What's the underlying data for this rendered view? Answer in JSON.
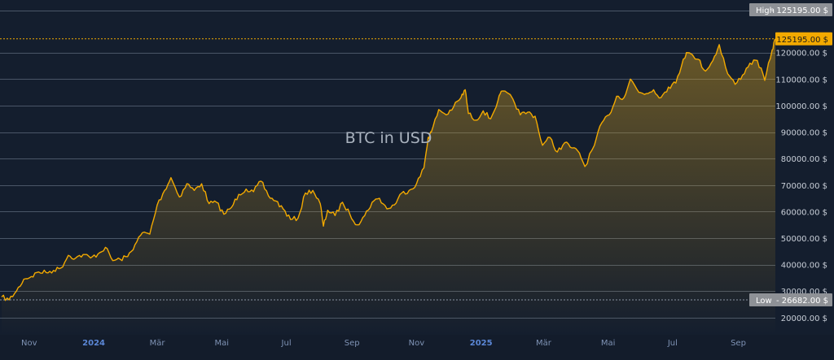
{
  "chart_data": {
    "type": "area",
    "title": "BTC in USD",
    "currency_suffix": "$",
    "ylim": [
      13500,
      138000
    ],
    "yticks": [
      {
        "value": 20000,
        "label": "20000.00 $"
      },
      {
        "value": 30000,
        "label": "30000.00 $"
      },
      {
        "value": 40000,
        "label": "40000.00 $"
      },
      {
        "value": 50000,
        "label": "50000.00 $"
      },
      {
        "value": 60000,
        "label": "60000.00 $"
      },
      {
        "value": 70000,
        "label": "70000.00 $"
      },
      {
        "value": 80000,
        "label": "80000.00 $"
      },
      {
        "value": 90000,
        "label": "90000.00 $"
      },
      {
        "value": 100000,
        "label": "100000.00 $"
      },
      {
        "value": 110000,
        "label": "110000.00 $"
      },
      {
        "value": 120000,
        "label": "120000.00 $"
      }
    ],
    "xticks": [
      {
        "date": "2023-11-01",
        "label": "Nov",
        "year": false
      },
      {
        "date": "2024-01-01",
        "label": "2024",
        "year": true
      },
      {
        "date": "2024-03-01",
        "label": "Mär",
        "year": false
      },
      {
        "date": "2024-05-01",
        "label": "Mai",
        "year": false
      },
      {
        "date": "2024-07-01",
        "label": "Jul",
        "year": false
      },
      {
        "date": "2024-09-01",
        "label": "Sep",
        "year": false
      },
      {
        "date": "2024-11-01",
        "label": "Nov",
        "year": false
      },
      {
        "date": "2025-01-01",
        "label": "2025",
        "year": true
      },
      {
        "date": "2025-03-01",
        "label": "Mär",
        "year": false
      },
      {
        "date": "2025-05-01",
        "label": "Mai",
        "year": false
      },
      {
        "date": "2025-07-01",
        "label": "Jul",
        "year": false
      },
      {
        "date": "2025-09-01",
        "label": "Sep",
        "year": false
      }
    ],
    "high": {
      "label": "High",
      "value": 125195.0,
      "text": "125195.00 $"
    },
    "low": {
      "label": "Low",
      "value": 26682.0,
      "text": "26682.00 $"
    },
    "last": {
      "value": 125195.0,
      "text": "125195.00 $"
    },
    "series": [
      {
        "x": [
          "2023-10-06",
          "2023-10-13",
          "2023-10-20",
          "2023-10-27",
          "2023-11-03",
          "2023-11-10",
          "2023-11-17",
          "2023-11-24",
          "2023-12-01",
          "2023-12-08",
          "2023-12-15",
          "2023-12-22",
          "2023-12-29",
          "2024-01-05",
          "2024-01-12",
          "2024-01-19",
          "2024-01-26",
          "2024-02-02",
          "2024-02-09",
          "2024-02-16",
          "2024-02-23",
          "2024-03-01",
          "2024-03-08",
          "2024-03-14",
          "2024-03-22",
          "2024-03-29",
          "2024-04-05",
          "2024-04-12",
          "2024-04-19",
          "2024-04-26",
          "2024-05-03",
          "2024-05-10",
          "2024-05-17",
          "2024-05-24",
          "2024-05-31",
          "2024-06-07",
          "2024-06-14",
          "2024-06-21",
          "2024-06-28",
          "2024-07-05",
          "2024-07-12",
          "2024-07-19",
          "2024-07-26",
          "2024-08-02",
          "2024-08-05",
          "2024-08-09",
          "2024-08-16",
          "2024-08-23",
          "2024-08-30",
          "2024-09-06",
          "2024-09-13",
          "2024-09-20",
          "2024-09-27",
          "2024-10-04",
          "2024-10-11",
          "2024-10-18",
          "2024-10-25",
          "2024-11-01",
          "2024-11-08",
          "2024-11-12",
          "2024-11-15",
          "2024-11-22",
          "2024-11-29",
          "2024-12-06",
          "2024-12-13",
          "2024-12-17",
          "2024-12-20",
          "2024-12-27",
          "2025-01-03",
          "2025-01-10",
          "2025-01-17",
          "2025-01-21",
          "2025-01-31",
          "2025-02-07",
          "2025-02-14",
          "2025-02-21",
          "2025-02-28",
          "2025-03-07",
          "2025-03-14",
          "2025-03-21",
          "2025-03-28",
          "2025-04-04",
          "2025-04-09",
          "2025-04-18",
          "2025-04-25",
          "2025-05-02",
          "2025-05-09",
          "2025-05-16",
          "2025-05-22",
          "2025-05-30",
          "2025-06-06",
          "2025-06-13",
          "2025-06-20",
          "2025-06-27",
          "2025-07-04",
          "2025-07-11",
          "2025-07-14",
          "2025-07-25",
          "2025-08-01",
          "2025-08-08",
          "2025-08-14",
          "2025-08-22",
          "2025-08-29",
          "2025-09-05",
          "2025-09-12",
          "2025-09-19",
          "2025-09-26",
          "2025-10-03",
          "2025-10-06"
        ],
        "values": [
          27800,
          26682,
          30000,
          34500,
          35500,
          37200,
          37000,
          37800,
          38700,
          43500,
          42500,
          43800,
          42500,
          44000,
          46500,
          41500,
          42000,
          43000,
          47500,
          52000,
          51500,
          62500,
          68000,
          72800,
          65500,
          70500,
          68000,
          70500,
          63000,
          63500,
          59000,
          61500,
          66500,
          68500,
          67500,
          71500,
          66000,
          64000,
          61000,
          57000,
          57500,
          67000,
          68000,
          63000,
          54500,
          60500,
          58500,
          63500,
          59000,
          55000,
          58500,
          63500,
          65000,
          61000,
          62500,
          67000,
          68000,
          70500,
          76500,
          88000,
          90000,
          98500,
          96500,
          99500,
          103000,
          106000,
          97000,
          94500,
          98000,
          95000,
          102000,
          105500,
          102500,
          96500,
          97500,
          96000,
          85000,
          88000,
          82500,
          86000,
          84000,
          82000,
          77000,
          85000,
          93500,
          96500,
          103500,
          103000,
          110000,
          105000,
          104500,
          106000,
          103000,
          107000,
          108500,
          117500,
          120000,
          117500,
          113000,
          117000,
          123000,
          112000,
          108000,
          111500,
          116000,
          117000,
          109500,
          121000,
          125195
        ]
      }
    ]
  }
}
